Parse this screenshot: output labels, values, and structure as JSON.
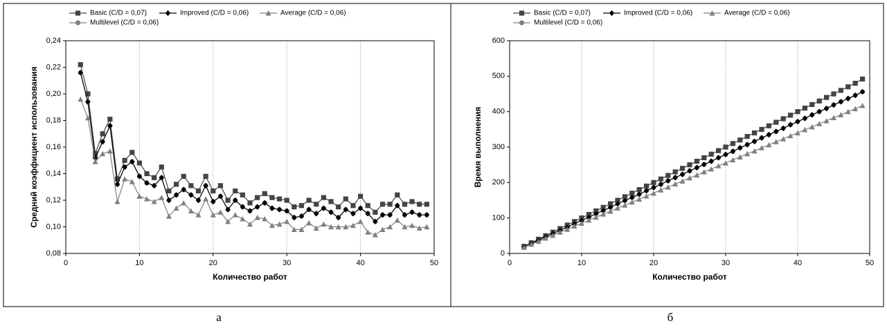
{
  "chart_data": [
    {
      "type": "line",
      "xlabel": "Количество работ",
      "ylabel": "Средний коэффициент использования",
      "x": [
        2,
        3,
        4,
        5,
        6,
        7,
        8,
        9,
        10,
        11,
        12,
        13,
        14,
        15,
        16,
        17,
        18,
        19,
        20,
        21,
        22,
        23,
        24,
        25,
        26,
        27,
        28,
        29,
        30,
        31,
        32,
        33,
        34,
        35,
        36,
        37,
        38,
        39,
        40,
        41,
        42,
        43,
        44,
        45,
        46,
        47,
        48,
        49
      ],
      "xlim": [
        0,
        50
      ],
      "xticks": [
        0,
        10,
        20,
        30,
        40,
        50
      ],
      "ylim": [
        0.08,
        0.24
      ],
      "yticks": [
        {
          "value": 0.08,
          "label": "0,08"
        },
        {
          "value": 0.1,
          "label": "0,10"
        },
        {
          "value": 0.12,
          "label": "0,12"
        },
        {
          "value": 0.14,
          "label": "0,14"
        },
        {
          "value": 0.16,
          "label": "0,16"
        },
        {
          "value": 0.18,
          "label": "0,18"
        },
        {
          "value": 0.2,
          "label": "0,20"
        },
        {
          "value": 0.22,
          "label": "0,22"
        },
        {
          "value": 0.24,
          "label": "0,24"
        }
      ],
      "grid": "x",
      "series": [
        {
          "name": "Basic (C/D = 0,07)",
          "color": "#444444",
          "marker": "square",
          "values": [
            0.222,
            0.2,
            0.155,
            0.17,
            0.181,
            0.136,
            0.15,
            0.156,
            0.148,
            0.14,
            0.137,
            0.145,
            0.127,
            0.132,
            0.138,
            0.131,
            0.127,
            0.138,
            0.127,
            0.131,
            0.12,
            0.127,
            0.124,
            0.118,
            0.122,
            0.125,
            0.122,
            0.121,
            0.12,
            0.115,
            0.116,
            0.12,
            0.117,
            0.122,
            0.119,
            0.115,
            0.121,
            0.116,
            0.123,
            0.116,
            0.111,
            0.117,
            0.117,
            0.124,
            0.117,
            0.119,
            0.117,
            0.117
          ]
        },
        {
          "name": "Multilevel (C/D = 0,06)",
          "color": "#808080",
          "marker": "circle",
          "values": [
            0.216,
            0.194,
            0.152,
            0.164,
            0.176,
            0.132,
            0.145,
            0.149,
            0.138,
            0.133,
            0.131,
            0.137,
            0.12,
            0.124,
            0.128,
            0.124,
            0.12,
            0.131,
            0.119,
            0.123,
            0.113,
            0.12,
            0.115,
            0.112,
            0.115,
            0.118,
            0.114,
            0.113,
            0.112,
            0.107,
            0.108,
            0.113,
            0.11,
            0.114,
            0.111,
            0.107,
            0.113,
            0.11,
            0.114,
            0.11,
            0.104,
            0.109,
            0.109,
            0.116,
            0.109,
            0.111,
            0.109,
            0.109
          ]
        },
        {
          "name": "Improved (C/D = 0,06)",
          "color": "#000000",
          "marker": "diamond",
          "values": [
            0.216,
            0.194,
            0.152,
            0.164,
            0.176,
            0.132,
            0.145,
            0.149,
            0.138,
            0.133,
            0.131,
            0.137,
            0.12,
            0.124,
            0.128,
            0.124,
            0.12,
            0.131,
            0.119,
            0.123,
            0.113,
            0.12,
            0.115,
            0.112,
            0.115,
            0.118,
            0.114,
            0.113,
            0.112,
            0.107,
            0.108,
            0.113,
            0.11,
            0.114,
            0.111,
            0.107,
            0.113,
            0.11,
            0.114,
            0.11,
            0.104,
            0.109,
            0.109,
            0.116,
            0.109,
            0.111,
            0.109,
            0.109
          ]
        },
        {
          "name": "Average (C/D = 0,06)",
          "color": "#808080",
          "marker": "triangle",
          "values": [
            0.196,
            0.182,
            0.149,
            0.155,
            0.157,
            0.119,
            0.136,
            0.134,
            0.123,
            0.121,
            0.119,
            0.122,
            0.108,
            0.114,
            0.118,
            0.112,
            0.109,
            0.121,
            0.109,
            0.111,
            0.104,
            0.109,
            0.106,
            0.102,
            0.107,
            0.106,
            0.101,
            0.102,
            0.104,
            0.098,
            0.098,
            0.103,
            0.099,
            0.102,
            0.1,
            0.1,
            0.1,
            0.101,
            0.104,
            0.096,
            0.094,
            0.098,
            0.1,
            0.105,
            0.1,
            0.101,
            0.099,
            0.1
          ]
        }
      ]
    },
    {
      "type": "line",
      "xlabel": "Количество работ",
      "ylabel": "Время выполнения",
      "x": [
        2,
        3,
        4,
        5,
        6,
        7,
        8,
        9,
        10,
        11,
        12,
        13,
        14,
        15,
        16,
        17,
        18,
        19,
        20,
        21,
        22,
        23,
        24,
        25,
        26,
        27,
        28,
        29,
        30,
        31,
        32,
        33,
        34,
        35,
        36,
        37,
        38,
        39,
        40,
        41,
        42,
        43,
        44,
        45,
        46,
        47,
        48,
        49
      ],
      "xlim": [
        0,
        50
      ],
      "xticks": [
        0,
        10,
        20,
        30,
        40,
        50
      ],
      "ylim": [
        0,
        600
      ],
      "yticks": [
        0,
        100,
        200,
        300,
        400,
        500,
        600
      ],
      "grid": "x",
      "series": [
        {
          "name": "Basic (C/D = 0,07)",
          "color": "#444444",
          "marker": "square",
          "values": [
            20,
            30,
            40,
            50,
            60,
            70,
            80,
            90,
            100,
            110,
            120,
            130,
            140,
            150,
            160,
            170,
            180,
            190,
            200,
            210,
            220,
            230,
            240,
            250,
            260,
            270,
            280,
            290,
            300,
            310,
            320,
            330,
            340,
            350,
            360,
            370,
            380,
            390,
            400,
            410,
            420,
            430,
            440,
            450,
            460,
            470,
            480,
            492
          ]
        },
        {
          "name": "Multilevel (C/D = 0,06)",
          "color": "#808080",
          "marker": "circle",
          "values": [
            19,
            28,
            37,
            47,
            56,
            65,
            74,
            84,
            93,
            102,
            112,
            121,
            130,
            140,
            149,
            158,
            167,
            177,
            186,
            195,
            205,
            214,
            223,
            233,
            242,
            251,
            260,
            270,
            279,
            288,
            298,
            307,
            316,
            326,
            335,
            344,
            353,
            363,
            372,
            381,
            391,
            400,
            409,
            419,
            428,
            437,
            446,
            456
          ]
        },
        {
          "name": "Improved (C/D = 0,06)",
          "color": "#000000",
          "marker": "diamond",
          "values": [
            19,
            28,
            37,
            47,
            56,
            65,
            74,
            84,
            93,
            102,
            112,
            121,
            130,
            140,
            149,
            158,
            167,
            177,
            186,
            195,
            205,
            214,
            223,
            233,
            242,
            251,
            260,
            270,
            279,
            288,
            298,
            307,
            316,
            326,
            335,
            344,
            353,
            363,
            372,
            381,
            391,
            400,
            409,
            419,
            428,
            437,
            446,
            456
          ]
        },
        {
          "name": "Average (C/D = 0,06)",
          "color": "#808080",
          "marker": "triangle",
          "values": [
            17,
            26,
            34,
            43,
            51,
            60,
            68,
            77,
            85,
            94,
            102,
            111,
            119,
            128,
            136,
            145,
            153,
            162,
            170,
            179,
            187,
            196,
            204,
            213,
            221,
            230,
            238,
            247,
            255,
            264,
            272,
            281,
            289,
            298,
            306,
            315,
            323,
            332,
            340,
            349,
            357,
            366,
            374,
            383,
            391,
            400,
            408,
            417
          ]
        }
      ]
    }
  ],
  "captions": [
    "а",
    "б"
  ]
}
